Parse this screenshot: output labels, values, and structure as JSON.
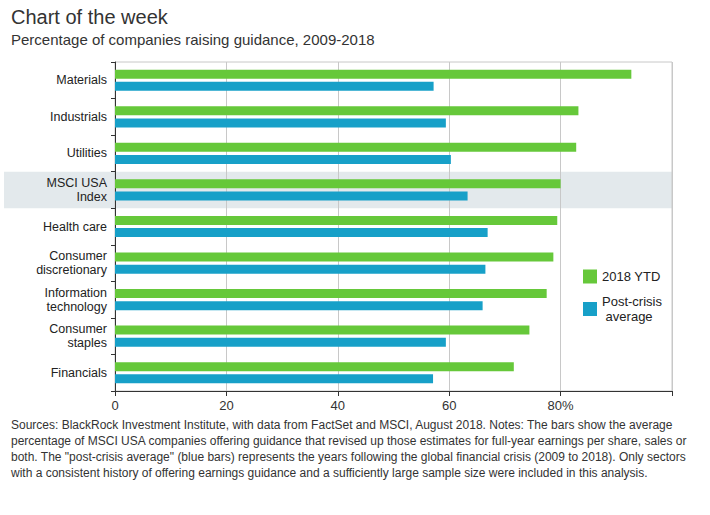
{
  "chart_data": {
    "type": "bar",
    "orientation": "horizontal",
    "title": "Chart of the week",
    "subtitle": "Percentage of companies raising guidance, 2009-2018",
    "note": "Sources: BlackRock Investment Institute, with data from FactSet and MSCI, August 2018. Notes: The bars show the average percentage of MSCI USA companies offering guidance that revised up those estimates for full-year earnings per share, sales or both. The \"post-crisis average\" (blue bars) represents the years following the global financial crisis (2009 to 2018). Only sectors with a consistent history of offering earnings guidance and a sufficiently large sample size were included in this analysis.",
    "categories": [
      "Materials",
      "Industrials",
      "Utilities",
      "MSCI USA\nIndex",
      "Health care",
      "Consumer\ndiscretionary",
      "Information\ntechnology",
      "Consumer\nstaples",
      "Financials"
    ],
    "series": [
      {
        "name": "2018 YTD",
        "color": "#66c83a",
        "values": [
          92.7,
          83.2,
          82.8,
          80.0,
          79.4,
          78.7,
          77.5,
          74.4,
          71.6
        ]
      },
      {
        "name": "Post-crisis average",
        "color": "#17a0c8",
        "values": [
          57.2,
          59.4,
          60.3,
          63.3,
          66.9,
          66.5,
          66.0,
          59.4,
          57.1
        ]
      }
    ],
    "xlim": [
      0,
      100
    ],
    "xticks": [
      0,
      20,
      40,
      60,
      {
        "value": 80,
        "label": "80%"
      }
    ],
    "grid": true,
    "legend": "right"
  }
}
